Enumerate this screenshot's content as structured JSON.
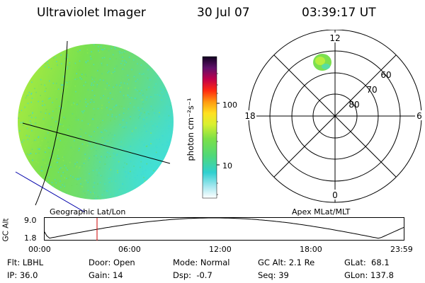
{
  "header": {
    "title": "Ultraviolet Imager",
    "date": "30 Jul 07",
    "time": "03:39:17 UT"
  },
  "colorbar": {
    "unit_label": "photon cm⁻²s⁻¹",
    "ticks": [
      "100",
      "10"
    ]
  },
  "polar_plot": {
    "mlt_labels": {
      "top": "12",
      "left": "18",
      "right": "6",
      "bottom": "0"
    },
    "lat_labels": [
      "60",
      "70",
      "80"
    ]
  },
  "panel_labels": {
    "left": "Geographic Lat/Lon",
    "right": "Apex MLat/MLT"
  },
  "altitude_plot": {
    "ylabel": "GC Alt",
    "y_ticks": [
      "9.0",
      "1.8"
    ],
    "x_ticks": [
      "00:00",
      "06:00",
      "12:00",
      "18:00",
      "23:59"
    ]
  },
  "info": {
    "filter": "Flt: LBHL",
    "ip": "IP: 36.0",
    "door": "Door: Open",
    "gain": "Gain: 14",
    "mode": "Mode: Normal",
    "dsp": "Dsp:  -0.7",
    "gc_alt": "GC Alt: 2.1 Re",
    "seq": "Seq: 39",
    "glat": "GLat:  68.1",
    "glon": "GLon: 137.8"
  },
  "colors": {
    "disk_base": "#79e04e",
    "disk_limb": "#c8ee3a",
    "disk_cyan": "#3fe0d0",
    "current_time_marker": "#cc0000",
    "coastline": "#0000aa"
  }
}
